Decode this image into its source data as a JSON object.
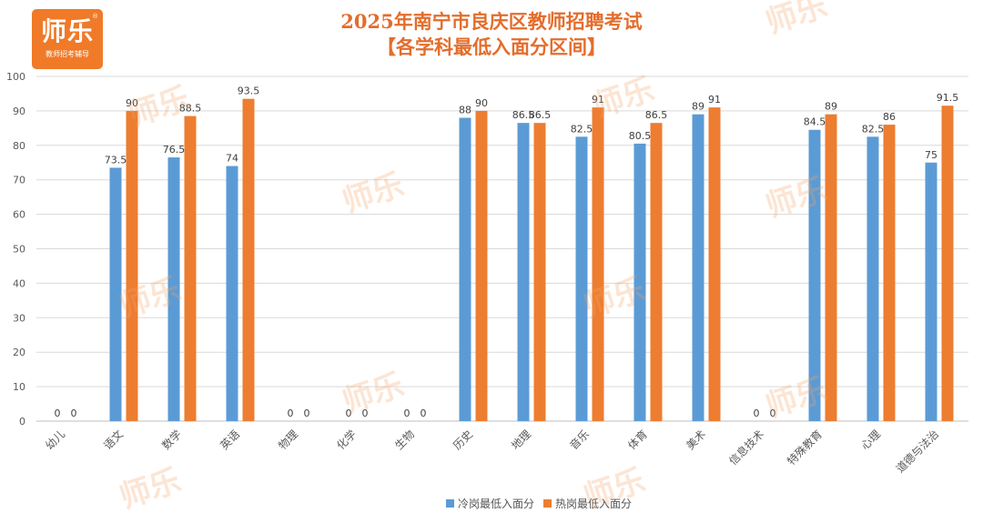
{
  "logo": {
    "main": "师乐",
    "sub": "教师招考辅导",
    "reg": "®"
  },
  "watermark": "师乐",
  "colors": {
    "series1": "#5b9bd5",
    "series2": "#ed7d31",
    "title": "#e36d2c",
    "grid": "#d9d9d9",
    "axis_text": "#595959"
  },
  "chart_data": {
    "type": "bar",
    "title": "2025年南宁市良庆区教师招聘考试",
    "subtitle": "【各学科最低入面分区间】",
    "categories": [
      "幼儿",
      "语文",
      "数学",
      "英语",
      "物理",
      "化学",
      "生物",
      "历史",
      "地理",
      "音乐",
      "体育",
      "美术",
      "信息技术",
      "特殊教育",
      "心理",
      "道德与法治"
    ],
    "series": [
      {
        "name": "冷岗最低入面分",
        "color": "#5b9bd5",
        "values": [
          0,
          73.5,
          76.5,
          74,
          0,
          0,
          0,
          88,
          86.5,
          82.5,
          80.5,
          89,
          0,
          84.5,
          82.5,
          75
        ]
      },
      {
        "name": "热岗最低入面分",
        "color": "#ed7d31",
        "values": [
          0,
          90,
          88.5,
          93.5,
          0,
          0,
          0,
          90,
          86.5,
          91,
          86.5,
          91,
          0,
          89,
          86,
          91.5
        ]
      }
    ],
    "ylim": [
      0,
      100
    ],
    "yticks": [
      0,
      10,
      20,
      30,
      40,
      50,
      60,
      70,
      80,
      90,
      100
    ],
    "grid": true,
    "legend": "bottom",
    "data_labels": true
  }
}
